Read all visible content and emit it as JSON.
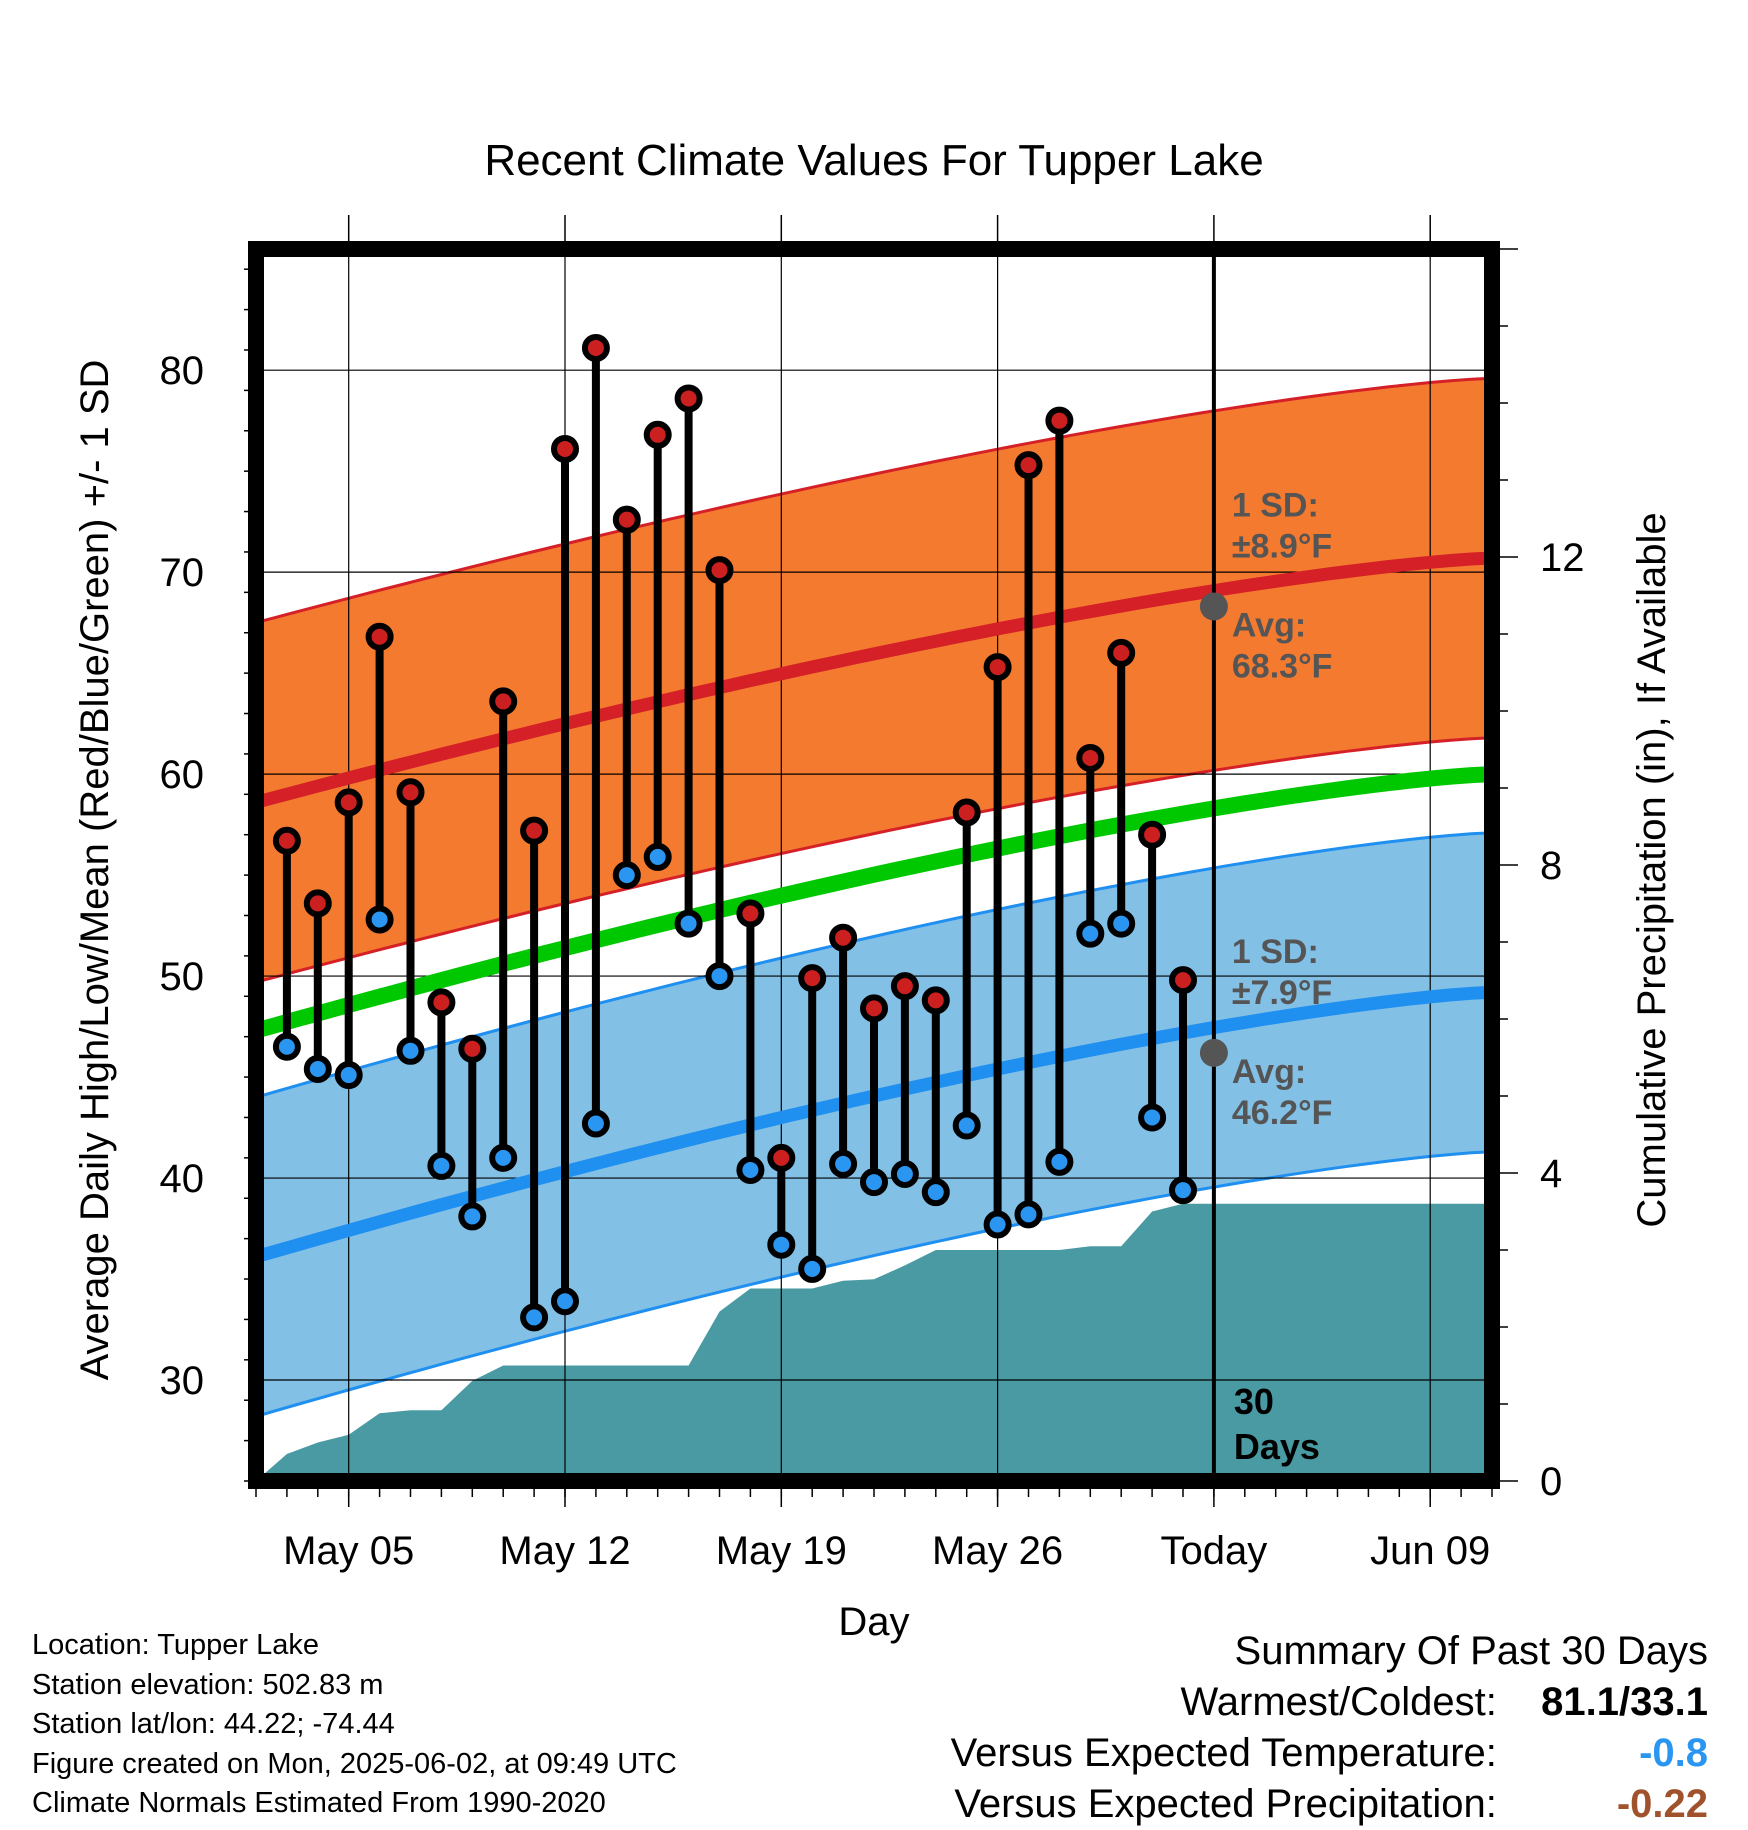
{
  "chart_data": {
    "type": "line",
    "title": "Recent Climate Values For Tupper Lake",
    "xlabel": "Day",
    "ylabel_left": "Average Daily High/Low/Mean (Red/Blue/Green) +/- 1 SD",
    "ylabel_right": "Cumulative Precipitation (in), If Available",
    "ylim": [
      25,
      86
    ],
    "y_ticks": [
      30,
      40,
      50,
      60,
      70,
      80
    ],
    "y2lim": [
      0,
      16
    ],
    "y2_ticks": [
      0,
      4,
      8,
      12
    ],
    "x_range": [
      "2025-05-02",
      "2025-06-11"
    ],
    "x_ticks": [
      {
        "date": "2025-05-05",
        "label": "May 05"
      },
      {
        "date": "2025-05-12",
        "label": "May 12"
      },
      {
        "date": "2025-05-19",
        "label": "May 19"
      },
      {
        "date": "2025-05-26",
        "label": "May 26"
      },
      {
        "date": "2025-06-02",
        "label": "Today"
      },
      {
        "date": "2025-06-09",
        "label": "Jun 09"
      }
    ],
    "today": "2025-06-02",
    "period_label": [
      "30",
      "Days"
    ],
    "observed": {
      "dates": [
        "2025-05-03",
        "2025-05-04",
        "2025-05-05",
        "2025-05-06",
        "2025-05-07",
        "2025-05-08",
        "2025-05-09",
        "2025-05-10",
        "2025-05-11",
        "2025-05-12",
        "2025-05-13",
        "2025-05-14",
        "2025-05-15",
        "2025-05-16",
        "2025-05-17",
        "2025-05-18",
        "2025-05-19",
        "2025-05-20",
        "2025-05-21",
        "2025-05-22",
        "2025-05-23",
        "2025-05-24",
        "2025-05-25",
        "2025-05-26",
        "2025-05-27",
        "2025-05-28",
        "2025-05-29",
        "2025-05-30",
        "2025-05-31",
        "2025-06-01"
      ],
      "highs": [
        56.7,
        53.6,
        58.6,
        66.8,
        59.1,
        48.7,
        46.4,
        63.6,
        57.2,
        76.1,
        81.1,
        72.6,
        76.8,
        78.6,
        70.1,
        53.1,
        41.0,
        49.9,
        51.9,
        48.4,
        49.5,
        48.8,
        58.1,
        65.3,
        75.3,
        77.5,
        60.8,
        66.0,
        57.0,
        49.8
      ],
      "lows": [
        46.5,
        45.4,
        45.1,
        52.8,
        46.3,
        40.6,
        38.1,
        41.0,
        33.1,
        33.9,
        42.7,
        55.0,
        55.9,
        52.6,
        50.0,
        40.4,
        36.7,
        35.5,
        40.7,
        39.8,
        40.2,
        39.3,
        42.6,
        37.7,
        38.2,
        40.8,
        52.1,
        52.6,
        43.0,
        39.4
      ]
    },
    "normals": {
      "dates": [
        "2025-05-02",
        "2025-06-11"
      ],
      "avg_high_start": 58.6,
      "avg_high_end": 70.7,
      "avg_low_start": 36.1,
      "avg_low_end": 49.2,
      "avg_mean_start": 47.3,
      "avg_mean_end": 60.0,
      "sd_high": 8.9,
      "sd_low": 7.9
    },
    "precip_cumulative": {
      "dates": [
        "2025-05-02",
        "2025-05-03",
        "2025-05-04",
        "2025-05-05",
        "2025-05-06",
        "2025-05-07",
        "2025-05-08",
        "2025-05-09",
        "2025-05-10",
        "2025-05-11",
        "2025-05-12",
        "2025-05-13",
        "2025-05-14",
        "2025-05-15",
        "2025-05-16",
        "2025-05-17",
        "2025-05-18",
        "2025-05-19",
        "2025-05-20",
        "2025-05-21",
        "2025-05-22",
        "2025-05-23",
        "2025-05-24",
        "2025-05-25",
        "2025-05-26",
        "2025-05-27",
        "2025-05-28",
        "2025-05-29",
        "2025-05-30",
        "2025-05-31",
        "2025-06-01",
        "2025-06-11"
      ],
      "values": [
        0.0,
        0.35,
        0.5,
        0.6,
        0.88,
        0.92,
        0.92,
        1.3,
        1.5,
        1.5,
        1.5,
        1.5,
        1.5,
        1.5,
        1.5,
        2.2,
        2.5,
        2.5,
        2.5,
        2.6,
        2.62,
        2.8,
        3.0,
        3.0,
        3.0,
        3.0,
        3.0,
        3.05,
        3.05,
        3.5,
        3.6,
        3.6
      ]
    },
    "annotations": {
      "high": {
        "sd_label": "1 SD:",
        "sd_value": "±8.9°F",
        "avg_label": "Avg:",
        "avg_value": "68.3°F",
        "avg": 68.3
      },
      "low": {
        "sd_label": "1 SD:",
        "sd_value": "±7.9°F",
        "avg_label": "Avg:",
        "avg_value": "46.2°F",
        "avg": 46.2
      }
    },
    "colors": {
      "high_band": "#f47a30",
      "high_line": "#d42026",
      "low_band": "#82c0e6",
      "low_line": "#1f8ff0",
      "mean_line": "#00c800",
      "precip": "#4a9aa3",
      "high_marker": "#cc2020",
      "low_marker": "#2a96f2",
      "annotation": "#555555",
      "sd_outline_high": "#d42026",
      "sd_outline_low": "#1f8ff0"
    }
  },
  "footer": {
    "location": "Location: Tupper Lake",
    "elevation": "Station elevation: 502.83 m",
    "latlon": "Station lat/lon: 44.22; -74.44",
    "created": "Figure created on Mon, 2025-06-02, at 09:49 UTC",
    "normals": "Climate Normals Estimated From 1990-2020"
  },
  "summary": {
    "title": "Summary Of Past 30 Days",
    "warm_cold_label": "Warmest/Coldest:",
    "warm_cold_value": "81.1/33.1",
    "temp_label": "Versus Expected Temperature:",
    "temp_value": "-0.8",
    "temp_color": "#2a96f2",
    "precip_label": "Versus Expected Precipitation:",
    "precip_value": "-0.22",
    "precip_color": "#a0522d"
  }
}
